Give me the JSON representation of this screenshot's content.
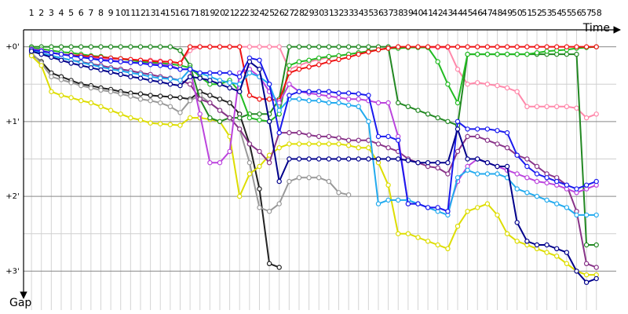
{
  "chart_data": {
    "type": "line",
    "x_label": "Time",
    "y_label": "Gap",
    "x": [
      1,
      2,
      3,
      4,
      5,
      6,
      7,
      8,
      9,
      10,
      11,
      12,
      13,
      14,
      15,
      16,
      17,
      18,
      19,
      20,
      21,
      22,
      23,
      24,
      25,
      26,
      27,
      28,
      29,
      30,
      31,
      32,
      33,
      34,
      35,
      36,
      37,
      38,
      39,
      40,
      41,
      42,
      43,
      44,
      45,
      46,
      47,
      48,
      49,
      50,
      51,
      52,
      53,
      54,
      55,
      56,
      57,
      58
    ],
    "xlim": [
      0.2,
      60
    ],
    "ylim": [
      -0.3,
      3.5
    ],
    "y_inverted": true,
    "grid": true,
    "yticks": [
      {
        "value": 0,
        "label": "+0'"
      },
      {
        "value": 1,
        "label": "+1'"
      },
      {
        "value": 2,
        "label": "+2'"
      },
      {
        "value": 3,
        "label": "+3'"
      }
    ],
    "series": [
      {
        "color": "#222222",
        "values": [
          0.1,
          0.2,
          0.35,
          0.4,
          0.45,
          0.5,
          0.52,
          0.55,
          0.57,
          0.6,
          0.62,
          0.63,
          0.65,
          0.66,
          0.67,
          0.68,
          0.7,
          0.6,
          0.65,
          0.7,
          0.75,
          0.9,
          1.3,
          1.9,
          2.9,
          2.95,
          null,
          null,
          null,
          null,
          null,
          null,
          null,
          null,
          null,
          null,
          null,
          null,
          null,
          null,
          null,
          null,
          null,
          null,
          null,
          null,
          null,
          null,
          null,
          null,
          null,
          null,
          null,
          null,
          null,
          null,
          null,
          null
        ]
      },
      {
        "color": "#999999",
        "values": [
          0.08,
          0.22,
          0.4,
          0.44,
          0.48,
          0.52,
          0.55,
          0.58,
          0.6,
          0.63,
          0.66,
          0.7,
          0.72,
          0.75,
          0.8,
          0.88,
          0.72,
          0.65,
          0.75,
          0.85,
          0.95,
          1.1,
          1.55,
          2.15,
          2.2,
          2.1,
          1.8,
          1.75,
          1.75,
          1.75,
          1.8,
          1.95,
          1.98,
          null,
          null,
          null,
          null,
          null,
          null,
          null,
          null,
          null,
          null,
          null,
          null,
          null,
          null,
          null,
          null,
          null,
          null,
          null,
          null,
          null,
          null,
          null,
          null,
          null
        ]
      },
      {
        "color": "#dddd00",
        "values": [
          0.12,
          0.25,
          0.6,
          0.65,
          0.68,
          0.72,
          0.75,
          0.8,
          0.85,
          0.9,
          0.95,
          0.98,
          1.02,
          1.03,
          1.04,
          1.05,
          0.95,
          0.95,
          0.97,
          1.0,
          1.2,
          2.0,
          1.7,
          1.6,
          1.45,
          1.35,
          1.3,
          1.3,
          1.3,
          1.3,
          1.3,
          1.3,
          1.32,
          1.35,
          1.35,
          1.55,
          1.85,
          2.5,
          2.5,
          2.55,
          2.6,
          2.65,
          2.7,
          2.4,
          2.2,
          2.15,
          2.1,
          2.25,
          2.5,
          2.6,
          2.65,
          2.7,
          2.75,
          2.8,
          2.9,
          3.0,
          3.05,
          3.05
        ]
      },
      {
        "color": "#ff88aa",
        "values": [
          0.04,
          0.06,
          0.08,
          0.1,
          0.12,
          0.13,
          0.14,
          0.15,
          0.16,
          0.17,
          0.17,
          0.18,
          0.18,
          0.19,
          0.2,
          0.22,
          0.05,
          0,
          0,
          0,
          0,
          0,
          0,
          0,
          0,
          0,
          0.3,
          0.25,
          0.2,
          0.17,
          0.14,
          0.12,
          0.1,
          0.08,
          0.06,
          0.04,
          0.02,
          0.02,
          0.01,
          0.01,
          0.01,
          0.01,
          0.01,
          0.3,
          0.5,
          0.48,
          0.5,
          0.52,
          0.55,
          0.6,
          0.8,
          0.8,
          0.8,
          0.8,
          0.8,
          0.82,
          0.95,
          0.9
        ]
      },
      {
        "color": "#228822",
        "values": [
          0,
          0,
          0,
          0,
          0,
          0,
          0,
          0,
          0,
          0,
          0,
          0,
          0,
          0,
          0,
          0.05,
          0.25,
          0.7,
          0.95,
          1.0,
          0.95,
          0.95,
          0.9,
          0.9,
          0.9,
          0.7,
          0,
          0,
          0,
          0,
          0,
          0,
          0,
          0,
          0,
          0,
          0,
          0.75,
          0.8,
          0.85,
          0.9,
          0.95,
          1.0,
          1.05,
          0.1,
          0.1,
          0.1,
          0.1,
          0.1,
          0.1,
          0.1,
          0.1,
          0.1,
          0.1,
          0.1,
          0.1,
          2.65,
          2.65
        ]
      },
      {
        "color": "#22bb22",
        "values": [
          0.02,
          0.03,
          0.05,
          0.07,
          0.08,
          0.1,
          0.12,
          0.13,
          0.15,
          0.16,
          0.18,
          0.2,
          0.21,
          0.22,
          0.23,
          0.25,
          0.28,
          0.4,
          0.5,
          0.5,
          0.45,
          0.6,
          0.95,
          0.98,
          1.0,
          0.9,
          0.25,
          0.2,
          0.18,
          0.15,
          0.13,
          0.12,
          0.1,
          0.08,
          0.06,
          0.04,
          0.02,
          0.02,
          0.01,
          0.01,
          0.01,
          0.2,
          0.5,
          0.75,
          0.1,
          0.1,
          0.1,
          0.1,
          0.1,
          0.1,
          0.1,
          0.08,
          0.06,
          0.05,
          0.04,
          0.02,
          0.01,
          0
        ]
      },
      {
        "color": "#ee1111",
        "values": [
          0.05,
          0.06,
          0.08,
          0.1,
          0.11,
          0.12,
          0.13,
          0.14,
          0.15,
          0.16,
          0.17,
          0.18,
          0.19,
          0.2,
          0.2,
          0.22,
          0,
          0,
          0,
          0,
          0,
          0,
          0.65,
          0.7,
          0.7,
          0.72,
          0.35,
          0.3,
          0.27,
          0.24,
          0.2,
          0.17,
          0.14,
          0.1,
          0.07,
          0.04,
          0.02,
          0,
          0,
          0,
          0,
          0,
          0,
          0,
          0,
          0,
          0,
          0,
          0,
          0,
          0,
          0,
          0,
          0,
          0,
          0,
          0,
          0
        ]
      },
      {
        "color": "#883388",
        "values": [
          0.05,
          0.08,
          0.12,
          0.15,
          0.18,
          0.2,
          0.23,
          0.25,
          0.28,
          0.3,
          0.32,
          0.35,
          0.37,
          0.4,
          0.42,
          0.45,
          0.5,
          0.7,
          0.75,
          0.85,
          0.95,
          1.1,
          1.3,
          1.4,
          1.55,
          1.15,
          1.15,
          1.15,
          1.18,
          1.2,
          1.2,
          1.22,
          1.25,
          1.25,
          1.25,
          1.3,
          1.35,
          1.4,
          1.5,
          1.55,
          1.6,
          1.62,
          1.7,
          1.4,
          1.2,
          1.2,
          1.25,
          1.3,
          1.35,
          1.45,
          1.5,
          1.6,
          1.7,
          1.75,
          1.85,
          2.2,
          2.9,
          2.95
        ]
      },
      {
        "color": "#bb44dd",
        "values": [
          0.03,
          0.05,
          0.08,
          0.1,
          0.12,
          0.14,
          0.15,
          0.17,
          0.18,
          0.2,
          0.21,
          0.22,
          0.23,
          0.24,
          0.25,
          0.3,
          0.3,
          0.9,
          1.55,
          1.55,
          1.4,
          0.35,
          0.3,
          0.4,
          0.6,
          0.75,
          0.5,
          0.6,
          0.62,
          0.64,
          0.66,
          0.68,
          0.7,
          0.7,
          0.72,
          0.75,
          0.75,
          1.2,
          2.1,
          2.1,
          2.15,
          2.15,
          2.2,
          1.8,
          1.6,
          1.5,
          1.55,
          1.6,
          1.65,
          1.7,
          1.75,
          1.8,
          1.82,
          1.85,
          1.9,
          1.95,
          1.9,
          1.85
        ]
      },
      {
        "color": "#22aaee",
        "values": [
          0.05,
          0.08,
          0.12,
          0.15,
          0.18,
          0.21,
          0.24,
          0.27,
          0.3,
          0.32,
          0.35,
          0.37,
          0.4,
          0.42,
          0.43,
          0.45,
          0.3,
          0.35,
          0.4,
          0.45,
          0.48,
          0.5,
          0.35,
          0.4,
          0.5,
          0.85,
          0.7,
          0.7,
          0.72,
          0.72,
          0.75,
          0.75,
          0.78,
          0.8,
          1.0,
          2.1,
          2.05,
          2.05,
          2.05,
          2.1,
          2.15,
          2.2,
          2.25,
          1.75,
          1.65,
          1.7,
          1.7,
          1.7,
          1.75,
          1.9,
          1.95,
          2.0,
          2.05,
          2.1,
          2.15,
          2.25,
          2.25,
          2.25
        ]
      },
      {
        "color": "#1a1aee",
        "values": [
          0.04,
          0.06,
          0.08,
          0.1,
          0.12,
          0.14,
          0.16,
          0.18,
          0.19,
          0.2,
          0.21,
          0.22,
          0.24,
          0.25,
          0.27,
          0.3,
          0.3,
          0.35,
          0.35,
          0.35,
          0.35,
          0.4,
          0.15,
          0.18,
          0.5,
          1.15,
          0.65,
          0.6,
          0.6,
          0.6,
          0.6,
          0.62,
          0.62,
          0.63,
          0.65,
          1.2,
          1.2,
          1.25,
          2.1,
          2.1,
          2.15,
          2.15,
          2.2,
          1.0,
          1.1,
          1.1,
          1.1,
          1.12,
          1.15,
          1.45,
          1.6,
          1.7,
          1.75,
          1.8,
          1.85,
          1.9,
          1.85,
          1.8
        ]
      },
      {
        "color": "#00008b",
        "values": [
          0.06,
          0.1,
          0.14,
          0.18,
          0.22,
          0.25,
          0.28,
          0.31,
          0.34,
          0.37,
          0.4,
          0.42,
          0.45,
          0.47,
          0.5,
          0.52,
          0.4,
          0.42,
          0.45,
          0.5,
          0.55,
          0.6,
          0.2,
          0.3,
          1.0,
          1.8,
          1.5,
          1.5,
          1.5,
          1.5,
          1.5,
          1.5,
          1.5,
          1.5,
          1.5,
          1.5,
          1.5,
          1.5,
          1.52,
          1.55,
          1.55,
          1.55,
          1.55,
          1.1,
          1.5,
          1.5,
          1.55,
          1.6,
          1.6,
          2.35,
          2.6,
          2.65,
          2.65,
          2.7,
          2.75,
          3.0,
          3.15,
          3.1
        ]
      }
    ]
  }
}
